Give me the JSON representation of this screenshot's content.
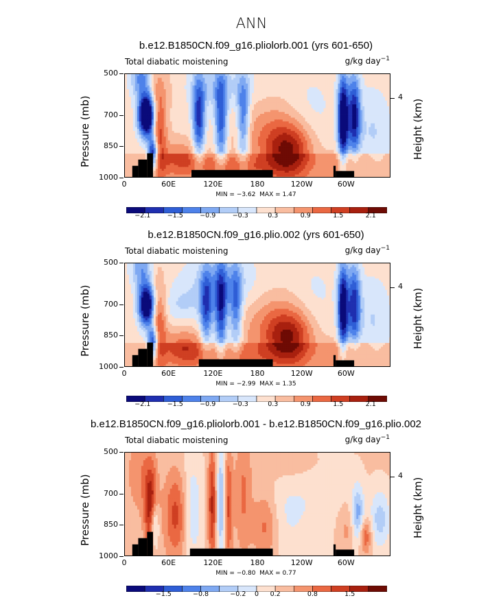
{
  "figure": {
    "title": "ANN"
  },
  "colors": {
    "levels": [
      "#0a0a7a",
      "#1f2fb0",
      "#2f5ed6",
      "#4e82ea",
      "#7fa9f2",
      "#b2cdf7",
      "#d8e6fb",
      "#fde0cf",
      "#f9bda0",
      "#f4946e",
      "#ea6842",
      "#cf3f22",
      "#a8200f",
      "#6e0b04"
    ],
    "land": "#000000"
  },
  "chart_data": [
    {
      "type": "contour",
      "title": "b.e12.B1850CN.f09_g16.pliolorb.001 (yrs 601-650)",
      "variable_label": "Total diabatic moistening",
      "units": "g/kg day",
      "units_exponent": "−1",
      "ylabel": "Pressure (mb)",
      "y2label": "Height (km)",
      "y_ticks": [
        "500",
        "700",
        "850",
        "1000"
      ],
      "y_tick_values": [
        500,
        700,
        850,
        1000
      ],
      "y2_ticks": [
        "4"
      ],
      "y2_tick_pressure": [
        620
      ],
      "x_ticks": [
        "0",
        "60E",
        "120E",
        "180",
        "120W",
        "60W"
      ],
      "x_tick_values": [
        0,
        60,
        120,
        180,
        240,
        300
      ],
      "xlim": [
        0,
        360
      ],
      "ylim": [
        1000,
        500
      ],
      "min_label": "MIN =",
      "min_value": "−3.62",
      "max_label": "MAX =",
      "max_value": "1.47",
      "colorbar_labels": [
        "−2.1",
        "−1.5",
        "−0.9",
        "−0.3",
        "0.3",
        "0.9",
        "1.5",
        "2.1"
      ],
      "features": [
        {
          "lon": 30,
          "p": 700,
          "value": -3.6,
          "wlon": 8,
          "wp": 70
        },
        {
          "lon": 38,
          "p": 880,
          "value": -2.6,
          "wlon": 5,
          "wp": 60
        },
        {
          "lon": 44,
          "p": 760,
          "value": 1.4,
          "wlon": 8,
          "wp": 150
        },
        {
          "lon": 22,
          "p": 520,
          "value": -1.2,
          "wlon": 10,
          "wp": 70
        },
        {
          "lon": 100,
          "p": 720,
          "value": -1.8,
          "wlon": 6,
          "wp": 140
        },
        {
          "lon": 130,
          "p": 720,
          "value": -1.6,
          "wlon": 6,
          "wp": 160
        },
        {
          "lon": 160,
          "p": 720,
          "value": -1.4,
          "wlon": 6,
          "wp": 150
        },
        {
          "lon": 120,
          "p": 560,
          "value": -0.6,
          "wlon": 40,
          "wp": 80
        },
        {
          "lon": 75,
          "p": 900,
          "value": 0.7,
          "wlon": 25,
          "wp": 60
        },
        {
          "lon": 140,
          "p": 950,
          "value": 0.6,
          "wlon": 35,
          "wp": 40
        },
        {
          "lon": 222,
          "p": 870,
          "value": 1.47,
          "wlon": 22,
          "wp": 90
        },
        {
          "lon": 200,
          "p": 780,
          "value": 0.6,
          "wlon": 40,
          "wp": 120
        },
        {
          "lon": 250,
          "p": 720,
          "value": -0.4,
          "wlon": 25,
          "wp": 150
        },
        {
          "lon": 295,
          "p": 720,
          "value": -2.7,
          "wlon": 5,
          "wp": 150
        },
        {
          "lon": 310,
          "p": 700,
          "value": -2.0,
          "wlon": 6,
          "wp": 140
        },
        {
          "lon": 335,
          "p": 780,
          "value": -0.5,
          "wlon": 18,
          "wp": 150
        },
        {
          "lon": 300,
          "p": 930,
          "value": 0.5,
          "wlon": 20,
          "wp": 60
        },
        {
          "lon": 60,
          "p": 560,
          "value": 0.3,
          "wlon": 25,
          "wp": 80
        }
      ],
      "topography": [
        {
          "lon0": 10,
          "lon1": 18,
          "p_top": 940
        },
        {
          "lon0": 18,
          "lon1": 30,
          "p_top": 910
        },
        {
          "lon0": 30,
          "lon1": 38,
          "p_top": 880
        },
        {
          "lon0": 90,
          "lon1": 200,
          "p_top": 960
        },
        {
          "lon0": 282,
          "lon1": 285,
          "p_top": 940
        },
        {
          "lon0": 285,
          "lon1": 310,
          "p_top": 965
        }
      ]
    },
    {
      "type": "contour",
      "title": "b.e12.B1850CN.f09_g16.plio.002 (yrs 601-650)",
      "variable_label": "Total diabatic moistening",
      "units": "g/kg day",
      "units_exponent": "−1",
      "ylabel": "Pressure (mb)",
      "y2label": "Height (km)",
      "y_ticks": [
        "500",
        "700",
        "850",
        "1000"
      ],
      "y_tick_values": [
        500,
        700,
        850,
        1000
      ],
      "y2_ticks": [
        "4"
      ],
      "y2_tick_pressure": [
        620
      ],
      "x_ticks": [
        "0",
        "60E",
        "120E",
        "180",
        "120W",
        "60W"
      ],
      "x_tick_values": [
        0,
        60,
        120,
        180,
        240,
        300
      ],
      "xlim": [
        0,
        360
      ],
      "ylim": [
        1000,
        500
      ],
      "min_label": "MIN =",
      "min_value": "−2.99",
      "max_label": "MAX =",
      "max_value": "1.35",
      "colorbar_labels": [
        "−2.1",
        "−1.5",
        "−0.9",
        "−0.3",
        "0.3",
        "0.9",
        "1.5",
        "2.1"
      ],
      "features": [
        {
          "lon": 30,
          "p": 700,
          "value": -3.0,
          "wlon": 8,
          "wp": 70
        },
        {
          "lon": 38,
          "p": 880,
          "value": -2.3,
          "wlon": 5,
          "wp": 60
        },
        {
          "lon": 44,
          "p": 780,
          "value": 1.3,
          "wlon": 8,
          "wp": 140
        },
        {
          "lon": 22,
          "p": 520,
          "value": -1.0,
          "wlon": 10,
          "wp": 70
        },
        {
          "lon": 110,
          "p": 720,
          "value": -1.5,
          "wlon": 6,
          "wp": 140
        },
        {
          "lon": 130,
          "p": 720,
          "value": -1.8,
          "wlon": 6,
          "wp": 160
        },
        {
          "lon": 150,
          "p": 720,
          "value": -1.3,
          "wlon": 6,
          "wp": 150
        },
        {
          "lon": 130,
          "p": 600,
          "value": -0.7,
          "wlon": 35,
          "wp": 100
        },
        {
          "lon": 75,
          "p": 700,
          "value": -0.4,
          "wlon": 20,
          "wp": 60
        },
        {
          "lon": 80,
          "p": 900,
          "value": 0.9,
          "wlon": 20,
          "wp": 60
        },
        {
          "lon": 140,
          "p": 950,
          "value": 0.5,
          "wlon": 35,
          "wp": 40
        },
        {
          "lon": 222,
          "p": 860,
          "value": 1.35,
          "wlon": 22,
          "wp": 90
        },
        {
          "lon": 205,
          "p": 790,
          "value": 0.6,
          "wlon": 45,
          "wp": 120
        },
        {
          "lon": 255,
          "p": 720,
          "value": -0.4,
          "wlon": 25,
          "wp": 150
        },
        {
          "lon": 295,
          "p": 720,
          "value": -2.5,
          "wlon": 5,
          "wp": 150
        },
        {
          "lon": 310,
          "p": 700,
          "value": -1.8,
          "wlon": 6,
          "wp": 140
        },
        {
          "lon": 335,
          "p": 780,
          "value": -0.5,
          "wlon": 18,
          "wp": 150
        },
        {
          "lon": 300,
          "p": 930,
          "value": 0.5,
          "wlon": 20,
          "wp": 60
        }
      ],
      "topography": [
        {
          "lon0": 10,
          "lon1": 18,
          "p_top": 940
        },
        {
          "lon0": 18,
          "lon1": 30,
          "p_top": 910
        },
        {
          "lon0": 30,
          "lon1": 38,
          "p_top": 880
        },
        {
          "lon0": 100,
          "lon1": 200,
          "p_top": 960
        },
        {
          "lon0": 282,
          "lon1": 285,
          "p_top": 940
        },
        {
          "lon0": 285,
          "lon1": 310,
          "p_top": 965
        }
      ]
    },
    {
      "type": "contour",
      "title": "b.e12.B1850CN.f09_g16.pliolorb.001 - b.e12.B1850CN.f09_g16.plio.002",
      "variable_label": "Total diabatic moistening",
      "units": "g/kg day",
      "units_exponent": "−1",
      "ylabel": "Pressure (mb)",
      "y2label": "Height (km)",
      "y_ticks": [
        "500",
        "700",
        "850",
        "1000"
      ],
      "y_tick_values": [
        500,
        700,
        850,
        1000
      ],
      "y2_ticks": [
        "4"
      ],
      "y2_tick_pressure": [
        620
      ],
      "x_ticks": [
        "0",
        "60E",
        "120E",
        "180",
        "120W",
        "60W"
      ],
      "x_tick_values": [
        0,
        60,
        120,
        180,
        240,
        300
      ],
      "xlim": [
        0,
        360
      ],
      "ylim": [
        1000,
        500
      ],
      "min_label": "MIN =",
      "min_value": "−0.80",
      "max_label": "MAX =",
      "max_value": "0.77",
      "colorbar_labels": [
        "−1.5",
        "−0.8",
        "−0.2",
        "0",
        "0.2",
        "0.8",
        "1.5"
      ],
      "colorbar_scale": 0.5,
      "features": [
        {
          "lon": 35,
          "p": 770,
          "value": 0.7,
          "wlon": 6,
          "wp": 150
        },
        {
          "lon": 40,
          "p": 850,
          "value": -0.6,
          "wlon": 4,
          "wp": 80
        },
        {
          "lon": 20,
          "p": 600,
          "value": 0.25,
          "wlon": 12,
          "wp": 140
        },
        {
          "lon": 70,
          "p": 800,
          "value": 0.5,
          "wlon": 12,
          "wp": 150
        },
        {
          "lon": 90,
          "p": 780,
          "value": -0.35,
          "wlon": 10,
          "wp": 180
        },
        {
          "lon": 118,
          "p": 750,
          "value": 0.6,
          "wlon": 4,
          "wp": 200
        },
        {
          "lon": 130,
          "p": 740,
          "value": -0.5,
          "wlon": 4,
          "wp": 200
        },
        {
          "lon": 140,
          "p": 760,
          "value": 0.45,
          "wlon": 4,
          "wp": 200
        },
        {
          "lon": 160,
          "p": 700,
          "value": 0.3,
          "wlon": 8,
          "wp": 200
        },
        {
          "lon": 190,
          "p": 850,
          "value": 0.35,
          "wlon": 12,
          "wp": 110
        },
        {
          "lon": 215,
          "p": 800,
          "value": -0.15,
          "wlon": 20,
          "wp": 140
        },
        {
          "lon": 260,
          "p": 700,
          "value": -0.15,
          "wlon": 30,
          "wp": 200
        },
        {
          "lon": 315,
          "p": 800,
          "value": -0.55,
          "wlon": 6,
          "wp": 100
        },
        {
          "lon": 325,
          "p": 900,
          "value": 0.45,
          "wlon": 6,
          "wp": 60
        },
        {
          "lon": 345,
          "p": 820,
          "value": -0.4,
          "wlon": 10,
          "wp": 100
        },
        {
          "lon": 300,
          "p": 870,
          "value": 0.2,
          "wlon": 10,
          "wp": 80
        },
        {
          "lon": 230,
          "p": 550,
          "value": 0.15,
          "wlon": 30,
          "wp": 60
        }
      ],
      "topography": [
        {
          "lon0": 10,
          "lon1": 18,
          "p_top": 940
        },
        {
          "lon0": 18,
          "lon1": 30,
          "p_top": 910
        },
        {
          "lon0": 30,
          "lon1": 38,
          "p_top": 880
        },
        {
          "lon0": 88,
          "lon1": 200,
          "p_top": 960
        },
        {
          "lon0": 282,
          "lon1": 285,
          "p_top": 940
        },
        {
          "lon0": 285,
          "lon1": 310,
          "p_top": 965
        }
      ]
    }
  ]
}
